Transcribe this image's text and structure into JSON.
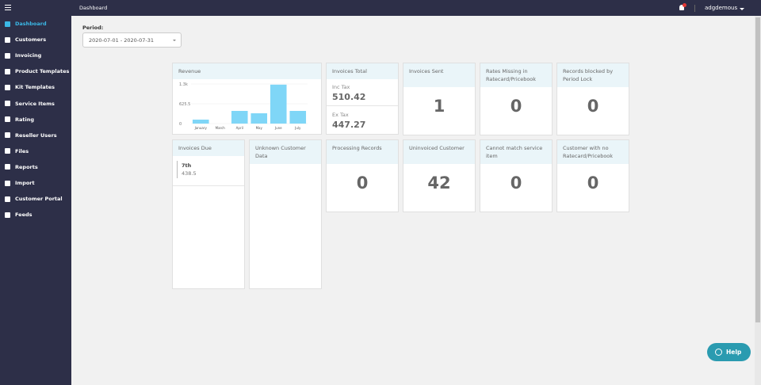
{
  "header": {
    "title": "Dashboard",
    "user": "adgdemous"
  },
  "sidebar": {
    "items": [
      "Dashboard",
      "Customers",
      "Invoicing",
      "Product Templates",
      "Kit Templates",
      "Service Items",
      "Rating",
      "Reseller Users",
      "Files",
      "Reports",
      "Import",
      "Customer Portal",
      "Feeds"
    ],
    "active": 0
  },
  "period": {
    "label": "Period:",
    "value": "2020-07-01 - 2020-07-31"
  },
  "chart_data": {
    "type": "bar",
    "title": "Revenue",
    "categories": [
      "January",
      "March",
      "April",
      "May",
      "June",
      "July"
    ],
    "values": [
      125,
      0,
      400,
      325,
      1230,
      400
    ],
    "color": "#7fd6f7",
    "ylim": [
      0,
      1251
    ],
    "yticks": [
      0,
      625.5,
      {
        "value": 1251,
        "label": "1.3k"
      }
    ],
    "grid": true
  },
  "invoices_total": {
    "title": "Invoices Total",
    "rows": [
      {
        "label": "Inc Tax",
        "value": 510.42
      },
      {
        "label": "Ex Tax",
        "value": 447.27
      }
    ]
  },
  "stat_cards": [
    {
      "title": "Invoices Sent",
      "value": 1
    },
    {
      "title": "Rates Missing in Ratecard/Pricebook",
      "value": 0
    },
    {
      "title": "Records blocked by Period Lock",
      "value": 0
    },
    {
      "title": "Processing Records",
      "value": 0
    },
    {
      "title": "Uninvoiced Customer",
      "value": 42
    },
    {
      "title": "Cannot match service item",
      "value": 0
    },
    {
      "title": "Customer with no Ratecard/Pricebook",
      "value": 0
    }
  ],
  "invoices_due": {
    "title": "Invoices Due",
    "items": [
      {
        "day": "7th",
        "amount": 438.5
      }
    ]
  },
  "unknown_customer": {
    "title": "Unknown Customer Data"
  },
  "help": "Help"
}
